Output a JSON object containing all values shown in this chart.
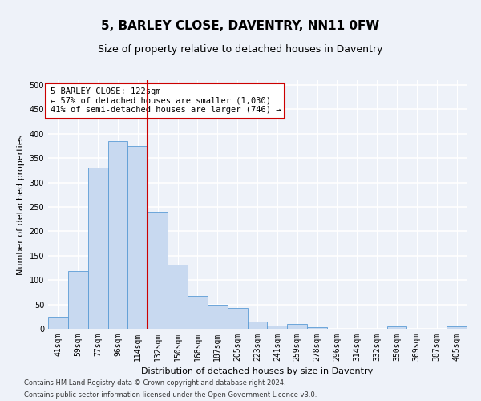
{
  "title": "5, BARLEY CLOSE, DAVENTRY, NN11 0FW",
  "subtitle": "Size of property relative to detached houses in Daventry",
  "xlabel": "Distribution of detached houses by size in Daventry",
  "ylabel": "Number of detached properties",
  "categories": [
    "41sqm",
    "59sqm",
    "77sqm",
    "96sqm",
    "114sqm",
    "132sqm",
    "150sqm",
    "168sqm",
    "187sqm",
    "205sqm",
    "223sqm",
    "241sqm",
    "259sqm",
    "278sqm",
    "296sqm",
    "314sqm",
    "332sqm",
    "350sqm",
    "369sqm",
    "387sqm",
    "405sqm"
  ],
  "bar_heights": [
    25,
    118,
    330,
    385,
    375,
    240,
    132,
    67,
    50,
    43,
    15,
    7,
    10,
    3,
    0,
    0,
    0,
    5,
    0,
    0,
    5
  ],
  "bar_color": "#c8d9f0",
  "bar_edge_color": "#5b9bd5",
  "vline_x": 4.5,
  "vline_color": "#cc0000",
  "annotation_text": "5 BARLEY CLOSE: 122sqm\n← 57% of detached houses are smaller (1,030)\n41% of semi-detached houses are larger (746) →",
  "annotation_box_color": "#ffffff",
  "annotation_box_edge": "#cc0000",
  "ylim": [
    0,
    510
  ],
  "yticks": [
    0,
    50,
    100,
    150,
    200,
    250,
    300,
    350,
    400,
    450,
    500
  ],
  "footer1": "Contains HM Land Registry data © Crown copyright and database right 2024.",
  "footer2": "Contains public sector information licensed under the Open Government Licence v3.0.",
  "background_color": "#eef2f9",
  "plot_background": "#eef2f9",
  "grid_color": "#ffffff",
  "title_fontsize": 11,
  "subtitle_fontsize": 9,
  "tick_fontsize": 7,
  "label_fontsize": 8,
  "annotation_fontsize": 7.5,
  "footer_fontsize": 6
}
